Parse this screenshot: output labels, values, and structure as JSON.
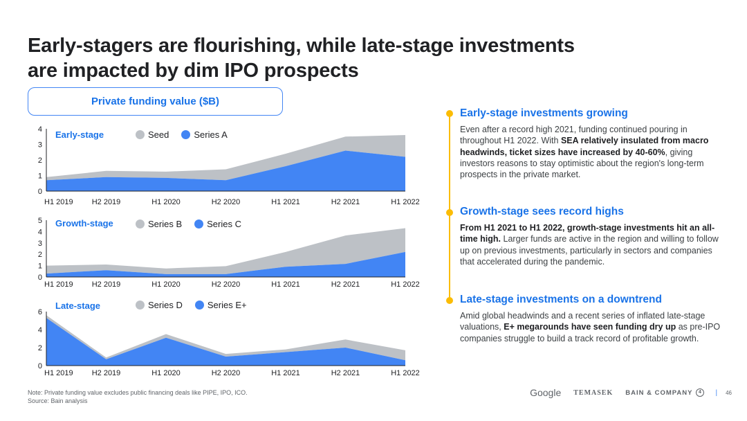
{
  "slide": {
    "title_line1": "Early-stagers are flourishing, while late-stage investments",
    "title_line2": "are impacted by dim IPO prospects",
    "panel_title": "Private funding value ($B)",
    "note_line1": "Note: Private funding value excludes public financing deals like PIPE, IPO, ICO.",
    "note_line2": "Source: Bain analysis",
    "logos": {
      "google": "Google",
      "temasek": "TEMASEK",
      "bain": "BAIN & COMPANY"
    },
    "page_number": "46"
  },
  "colors": {
    "blue": "#4285f4",
    "gray": "#bdc1c6",
    "accent": "#1a73e8",
    "timeline": "#fbbc04"
  },
  "chart_data": [
    {
      "type": "area",
      "title": "Early-stage",
      "categories": [
        "H1 2019",
        "H2 2019",
        "H1 2020",
        "H2 2020",
        "H1 2021",
        "H2 2021",
        "H1 2022"
      ],
      "ylim": [
        0,
        4
      ],
      "yticks": [
        "0",
        "1",
        "2",
        "3",
        "4"
      ],
      "legend": "top",
      "stacked": true,
      "series": [
        {
          "name": "Seed",
          "values": [
            0.2,
            0.4,
            0.4,
            0.7,
            0.8,
            0.9,
            1.4
          ],
          "color": "#bdc1c6"
        },
        {
          "name": "Series A",
          "values": [
            0.7,
            0.9,
            0.85,
            0.7,
            1.6,
            2.6,
            2.2
          ],
          "color": "#4285f4"
        }
      ]
    },
    {
      "type": "area",
      "title": "Growth-stage",
      "categories": [
        "H1 2019",
        "H2 2019",
        "H1 2020",
        "H2 2020",
        "H1 2021",
        "H2 2021",
        "H1 2022"
      ],
      "ylim": [
        0,
        5
      ],
      "yticks": [
        "0",
        "1",
        "2",
        "3",
        "4",
        "5"
      ],
      "legend": "top",
      "stacked": true,
      "series": [
        {
          "name": "Series B",
          "values": [
            0.7,
            0.5,
            0.5,
            0.7,
            1.3,
            2.5,
            2.1
          ],
          "color": "#bdc1c6"
        },
        {
          "name": "Series C",
          "values": [
            0.3,
            0.6,
            0.25,
            0.25,
            0.9,
            1.15,
            2.2
          ],
          "color": "#4285f4"
        }
      ]
    },
    {
      "type": "area",
      "title": "Late-stage",
      "categories": [
        "H1 2019",
        "H2 2019",
        "H1 2020",
        "H2 2020",
        "H1 2021",
        "H2 2021",
        "H1 2022"
      ],
      "ylim": [
        0,
        6
      ],
      "yticks": [
        "0",
        "2",
        "4",
        "6"
      ],
      "legend": "top",
      "stacked": true,
      "series": [
        {
          "name": "Series D",
          "values": [
            0.3,
            0.2,
            0.4,
            0.3,
            0.3,
            0.9,
            1.1
          ],
          "color": "#bdc1c6"
        },
        {
          "name": "Series E+",
          "values": [
            5.3,
            0.7,
            3.1,
            1.0,
            1.5,
            2.0,
            0.6
          ],
          "color": "#4285f4"
        }
      ]
    }
  ],
  "sections": [
    {
      "heading": "Early-stage investments growing",
      "p1": "Even after a record high 2021, funding continued pouring in throughout H1 2022. With ",
      "b1": "SEA relatively insulated from macro headwinds, ticket sizes have increased by 40-60%",
      "p2": ", giving investors reasons to stay optimistic about the region's long-term prospects in the private market."
    },
    {
      "heading": "Growth-stage sees record highs",
      "b1": "From H1 2021 to H1 2022, growth-stage investments hit an all-time high.",
      "p2": " Larger funds are active in the region and willing to follow up on previous investments, particularly in sectors and companies that accelerated during the pandemic."
    },
    {
      "heading": "Late-stage investments on a downtrend",
      "p1": "Amid global headwinds and a recent series of inflated late-stage valuations, ",
      "b1": "E+ megarounds have seen funding dry up",
      "p2": " as pre-IPO companies struggle to build a track record of profitable growth."
    }
  ]
}
